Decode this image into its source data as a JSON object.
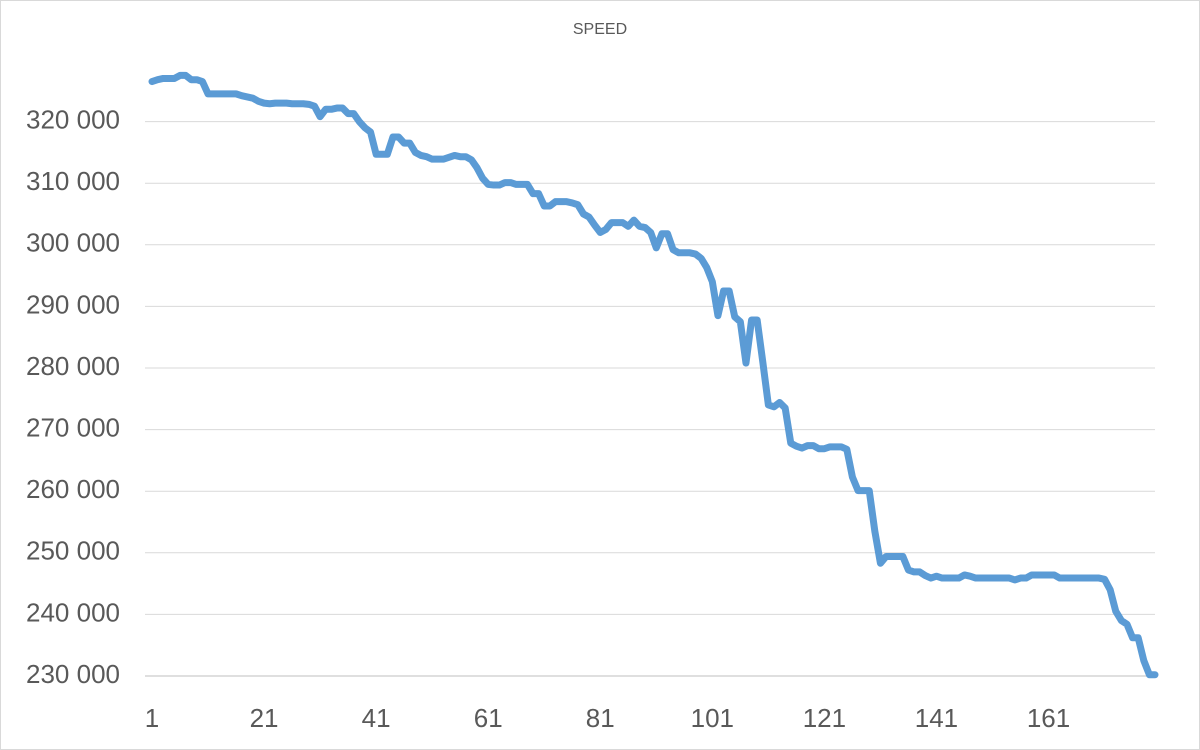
{
  "chart_data": {
    "type": "line",
    "title": "SPEED",
    "x": [
      1,
      2,
      3,
      4,
      5,
      6,
      7,
      8,
      9,
      10,
      11,
      12,
      13,
      14,
      15,
      16,
      17,
      18,
      19,
      20,
      21,
      22,
      23,
      24,
      25,
      26,
      27,
      28,
      29,
      30,
      31,
      32,
      33,
      34,
      35,
      36,
      37,
      38,
      39,
      40,
      41,
      42,
      43,
      44,
      45,
      46,
      47,
      48,
      49,
      50,
      51,
      52,
      53,
      54,
      55,
      56,
      57,
      58,
      59,
      60,
      61,
      62,
      63,
      64,
      65,
      66,
      67,
      68,
      69,
      70,
      71,
      72,
      73,
      74,
      75,
      76,
      77,
      78,
      79,
      80,
      81,
      82,
      83,
      84,
      85,
      86,
      87,
      88,
      89,
      90,
      91,
      92,
      93,
      94,
      95,
      96,
      97,
      98,
      99,
      100,
      101,
      102,
      103,
      104,
      105,
      106,
      107,
      108,
      109,
      110,
      111,
      112,
      113,
      114,
      115,
      116,
      117,
      118,
      119,
      120,
      121,
      122,
      123,
      124,
      125,
      126,
      127,
      128,
      129,
      130,
      131,
      132,
      133,
      134,
      135,
      136,
      137,
      138,
      139,
      140,
      141,
      142,
      143,
      144,
      145,
      146,
      147,
      148,
      149,
      150,
      151,
      152,
      153,
      154,
      155,
      156,
      157,
      158,
      159,
      160,
      161,
      162,
      163,
      164,
      165,
      166,
      167,
      168,
      169,
      170,
      171,
      172,
      173,
      174,
      175,
      176,
      177,
      178,
      179,
      180
    ],
    "values": [
      326500,
      326800,
      327000,
      327000,
      327000,
      327500,
      327500,
      326800,
      326800,
      326500,
      324500,
      324500,
      324500,
      324500,
      324500,
      324500,
      324200,
      324000,
      323800,
      323300,
      323000,
      322900,
      323000,
      323000,
      323000,
      322900,
      322900,
      322900,
      322800,
      322500,
      320800,
      322000,
      322000,
      322200,
      322200,
      321300,
      321300,
      320000,
      319000,
      318300,
      314700,
      314700,
      314700,
      317500,
      317500,
      316500,
      316500,
      315000,
      314500,
      314300,
      313900,
      313900,
      313900,
      314200,
      314500,
      314300,
      314300,
      313800,
      312500,
      310800,
      309800,
      309700,
      309700,
      310100,
      310100,
      309800,
      309800,
      309800,
      308300,
      308300,
      306300,
      306300,
      307000,
      307000,
      307000,
      306800,
      306500,
      305000,
      304500,
      303200,
      302000,
      302500,
      303600,
      303600,
      303600,
      303000,
      304000,
      303000,
      302800,
      302000,
      299500,
      301800,
      301800,
      299200,
      298700,
      298700,
      298700,
      298500,
      297800,
      296300,
      294000,
      288500,
      292500,
      292500,
      288300,
      287500,
      280800,
      287800,
      287800,
      281000,
      274000,
      273700,
      274400,
      273500,
      267800,
      267300,
      267000,
      267400,
      267400,
      266900,
      266900,
      267200,
      267200,
      267200,
      266800,
      262300,
      260100,
      260100,
      260100,
      253500,
      248300,
      249400,
      249400,
      249400,
      249400,
      247200,
      246900,
      246900,
      246300,
      245900,
      246200,
      245900,
      245900,
      245900,
      245900,
      246400,
      246200,
      245900,
      245900,
      245900,
      245900,
      245900,
      245900,
      245900,
      245600,
      245900,
      245900,
      246400,
      246400,
      246400,
      246400,
      246400,
      245900,
      245900,
      245900,
      245900,
      245900,
      245900,
      245900,
      245900,
      245700,
      244000,
      240500,
      239000,
      238400,
      236200,
      236200,
      232500,
      230200,
      230200
    ],
    "color": "#5b9bd5",
    "xlim": [
      1,
      180
    ],
    "xticks": [
      1,
      21,
      41,
      61,
      81,
      101,
      121,
      141,
      161
    ],
    "ylim": [
      230000,
      330000
    ],
    "yticks": [
      {
        "value": 230000,
        "label": "230 000"
      },
      {
        "value": 240000,
        "label": "240 000"
      },
      {
        "value": 250000,
        "label": "250 000"
      },
      {
        "value": 260000,
        "label": "260 000"
      },
      {
        "value": 270000,
        "label": "270 000"
      },
      {
        "value": 280000,
        "label": "280 000"
      },
      {
        "value": 290000,
        "label": "290 000"
      },
      {
        "value": 300000,
        "label": "300 000"
      },
      {
        "value": 310000,
        "label": "310 000"
      },
      {
        "value": 320000,
        "label": "320 000"
      }
    ],
    "grid": true
  }
}
